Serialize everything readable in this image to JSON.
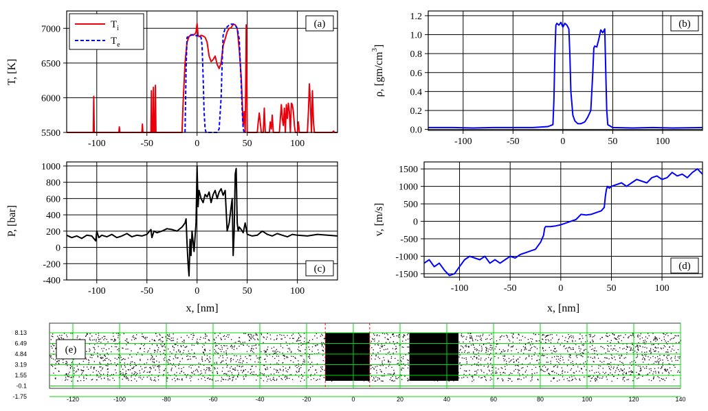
{
  "chart_data": [
    {
      "id": "a",
      "type": "line",
      "panel_label": "(a)",
      "xlabel": "",
      "ylabel": "T, [K]",
      "xlim": [
        -130,
        140
      ],
      "ylim": [
        5500,
        7250
      ],
      "xticks": [
        -100,
        -50,
        0,
        50,
        100
      ],
      "yticks": [
        5500,
        6000,
        6500,
        7000
      ],
      "grid": true,
      "legend": "top-left",
      "series": [
        {
          "name": "T",
          "subscript": "i",
          "color": "#e8000b",
          "dash": "solid",
          "x": [
            -130,
            -103.5,
            -103,
            -102.5,
            -78,
            -77.5,
            -77,
            -55,
            -54.5,
            -54,
            -46,
            -45.5,
            -45,
            -44,
            -43.5,
            -43,
            -42,
            -41.5,
            -41,
            -15,
            -14,
            -12,
            -10,
            -8,
            -6,
            -4,
            -2,
            -1,
            0,
            1,
            2,
            4,
            6,
            8,
            10,
            12,
            14,
            16,
            18,
            20,
            22,
            24,
            26,
            28,
            30,
            32,
            34,
            36,
            38,
            40,
            42,
            44,
            45,
            46,
            46.5,
            47,
            48,
            48.5,
            49,
            50,
            52,
            60,
            61,
            62,
            63,
            64,
            66,
            67,
            68,
            72,
            73,
            74,
            75,
            76,
            82,
            84,
            85,
            86,
            87,
            88,
            89,
            90,
            91,
            92,
            93,
            94,
            95,
            96,
            97,
            98,
            100,
            101,
            102,
            104,
            110,
            111,
            112,
            113,
            114,
            115,
            116,
            117,
            118,
            125,
            135,
            136,
            137,
            140
          ],
          "y": [
            5500,
            5500,
            6020,
            5500,
            5500,
            5580,
            5500,
            5500,
            5620,
            5500,
            5500,
            6100,
            5500,
            5500,
            6150,
            5500,
            5500,
            6180,
            5500,
            5500,
            5900,
            6500,
            6800,
            6880,
            6910,
            6900,
            6920,
            6950,
            7070,
            6900,
            6880,
            6900,
            6890,
            6870,
            6800,
            6600,
            6520,
            6550,
            6600,
            6480,
            6420,
            6500,
            6750,
            6850,
            6950,
            7000,
            7010,
            7060,
            7050,
            7000,
            6700,
            6300,
            5950,
            5600,
            5700,
            5800,
            5500,
            6200,
            7050,
            5500,
            5500,
            5500,
            5650,
            5780,
            5650,
            5500,
            5500,
            5850,
            5500,
            5500,
            5650,
            5550,
            5750,
            5500,
            5500,
            5900,
            5700,
            5600,
            5850,
            5500,
            5900,
            5700,
            5920,
            5800,
            5500,
            5920,
            5900,
            5800,
            5600,
            5500,
            5500,
            5650,
            5500,
            5500,
            5500,
            5800,
            6200,
            5900,
            5500,
            6100,
            5650,
            5500,
            5500,
            5500,
            5500,
            5520,
            5500,
            5500
          ]
        },
        {
          "name": "T",
          "subscript": "e",
          "color": "#0000ff",
          "dash": "dashed",
          "x": [
            -12,
            -11,
            -10,
            -8,
            -6,
            -4,
            -2,
            0,
            2,
            4,
            5,
            6,
            7,
            8,
            9,
            10,
            20,
            22,
            24,
            25,
            26,
            28,
            30,
            32,
            34,
            36,
            38,
            40,
            42,
            44,
            45,
            46,
            47
          ],
          "y": [
            5500,
            6400,
            6870,
            6880,
            6900,
            6910,
            6900,
            6890,
            6900,
            6870,
            6750,
            6300,
            5800,
            5550,
            5500,
            5500,
            5500,
            5550,
            6000,
            6500,
            6900,
            7000,
            7020,
            7050,
            7060,
            7060,
            7050,
            7000,
            6850,
            6200,
            5800,
            5550,
            5500
          ]
        }
      ]
    },
    {
      "id": "b",
      "type": "line",
      "panel_label": "(b)",
      "xlabel": "",
      "ylabel": "ρ, [gm/cm",
      "ylabel_sup": "3",
      "ylabel_tail": "]",
      "xlim": [
        -135,
        140
      ],
      "ylim": [
        -0.01,
        1.25
      ],
      "xticks": [
        -100,
        -50,
        0,
        50,
        100
      ],
      "yticks": [
        0.0,
        0.2,
        0.4,
        0.6,
        0.8,
        1.0,
        1.2
      ],
      "ytick_labels": [
        "0.0",
        "0.2",
        "0.4",
        "0.6",
        "0.8",
        "1.0",
        "1.2"
      ],
      "grid": true,
      "series": [
        {
          "color": "#0000ff",
          "x": [
            -135,
            -110,
            -90,
            -70,
            -50,
            -30,
            -15,
            -10,
            -9,
            -8,
            -7,
            -6,
            -4,
            -2,
            0,
            2,
            4,
            6,
            7,
            8,
            10,
            12,
            15,
            18,
            22,
            25,
            28,
            30,
            31,
            32,
            34,
            36,
            38,
            40,
            42,
            43,
            44,
            45,
            50,
            70,
            90,
            110,
            140
          ],
          "y": [
            0.02,
            0.02,
            0.015,
            0.02,
            0.02,
            0.02,
            0.03,
            0.05,
            0.3,
            0.8,
            1.1,
            1.12,
            1.1,
            1.13,
            1.08,
            1.12,
            1.1,
            1.06,
            0.8,
            0.4,
            0.15,
            0.09,
            0.06,
            0.06,
            0.08,
            0.13,
            0.2,
            0.6,
            0.86,
            0.88,
            0.87,
            0.95,
            1.05,
            1.02,
            1.06,
            0.6,
            0.2,
            0.05,
            0.02,
            0.015,
            0.02,
            0.015,
            0.02
          ]
        }
      ]
    },
    {
      "id": "c",
      "type": "line",
      "panel_label": "(c)",
      "xlabel": "x, [nm]",
      "ylabel": "P, [bar]",
      "xlim": [
        -130,
        140
      ],
      "ylim": [
        -400,
        1050
      ],
      "xticks": [
        -100,
        -50,
        0,
        50,
        100
      ],
      "yticks": [
        -400,
        -200,
        0,
        200,
        400,
        600,
        800,
        1000
      ],
      "grid": true,
      "series": [
        {
          "color": "#000000",
          "x": [
            -130,
            -125,
            -120,
            -115,
            -110,
            -105,
            -101,
            -100,
            -98,
            -95,
            -90,
            -85,
            -80,
            -75,
            -70,
            -65,
            -60,
            -55,
            -50,
            -46,
            -45,
            -43,
            -40,
            -35,
            -30,
            -25,
            -20,
            -15,
            -12,
            -11,
            -10,
            -9,
            -8,
            -7,
            -6,
            -5,
            -3,
            -1,
            0,
            1,
            2,
            3,
            4,
            6,
            8,
            10,
            12,
            14,
            16,
            18,
            20,
            22,
            24,
            26,
            28,
            30,
            32,
            34,
            35,
            36,
            37,
            38,
            39,
            40,
            41,
            42,
            44,
            46,
            48,
            50,
            55,
            60,
            65,
            70,
            75,
            80,
            85,
            90,
            95,
            100,
            110,
            120,
            130,
            140
          ],
          "y": [
            150,
            120,
            140,
            110,
            150,
            140,
            80,
            200,
            120,
            150,
            130,
            160,
            120,
            140,
            170,
            130,
            150,
            140,
            160,
            220,
            120,
            200,
            180,
            200,
            230,
            220,
            200,
            250,
            300,
            350,
            50,
            -200,
            -350,
            100,
            -100,
            200,
            -50,
            300,
            1000,
            500,
            700,
            650,
            600,
            550,
            650,
            620,
            680,
            550,
            650,
            700,
            600,
            680,
            720,
            640,
            700,
            200,
            300,
            500,
            600,
            -100,
            200,
            900,
            970,
            300,
            200,
            250,
            220,
            180,
            300,
            160,
            140,
            150,
            200,
            160,
            140,
            170,
            150,
            130,
            160,
            150,
            140,
            160,
            150,
            140
          ]
        }
      ]
    },
    {
      "id": "d",
      "type": "line",
      "panel_label": "(d)",
      "xlabel": "x, [nm]",
      "ylabel": "v, [m/s]",
      "xlim": [
        -135,
        140
      ],
      "ylim": [
        -1600,
        1700
      ],
      "xticks": [
        -100,
        -50,
        0,
        50,
        100
      ],
      "yticks": [
        -1500,
        -1000,
        -500,
        0,
        500,
        1000,
        1500
      ],
      "grid": true,
      "series": [
        {
          "color": "#0000ff",
          "x": [
            -135,
            -130,
            -125,
            -120,
            -115,
            -110,
            -105,
            -100,
            -95,
            -90,
            -85,
            -80,
            -75,
            -70,
            -65,
            -60,
            -55,
            -50,
            -45,
            -40,
            -35,
            -30,
            -25,
            -20,
            -17,
            -16,
            -15,
            -12,
            -10,
            -5,
            0,
            5,
            10,
            15,
            20,
            25,
            30,
            35,
            40,
            43,
            44,
            45,
            46,
            48,
            50,
            55,
            60,
            65,
            70,
            75,
            80,
            85,
            90,
            95,
            100,
            105,
            110,
            115,
            120,
            125,
            130,
            135,
            140
          ],
          "y": [
            -1200,
            -1100,
            -1300,
            -1200,
            -1400,
            -1550,
            -1500,
            -1300,
            -1100,
            -1000,
            -1050,
            -1100,
            -1000,
            -1200,
            -1100,
            -1200,
            -1100,
            -1000,
            -1050,
            -950,
            -900,
            -850,
            -800,
            -600,
            -400,
            -200,
            -150,
            -150,
            -150,
            -130,
            -100,
            -50,
            0,
            50,
            200,
            180,
            200,
            250,
            300,
            400,
            700,
            900,
            1000,
            950,
            1000,
            1050,
            1100,
            1000,
            1100,
            1200,
            1150,
            1100,
            1250,
            1300,
            1200,
            1250,
            1400,
            1300,
            1350,
            1250,
            1400,
            1500,
            1350
          ]
        }
      ]
    },
    {
      "id": "e",
      "type": "scatter",
      "panel_label": "(e)",
      "xlim": [
        -130,
        140
      ],
      "ylim": [
        -1.75,
        8.13
      ],
      "xticks": [
        -120,
        -100,
        -80,
        -60,
        -40,
        -20,
        0,
        20,
        40,
        60,
        80,
        100,
        120,
        140
      ],
      "yticks": [
        8.13,
        6.49,
        4.84,
        3.19,
        1.55,
        -0.1,
        -1.75
      ],
      "ytick_labels": [
        "8.13",
        "6.49",
        "4.84",
        "3.19",
        "1.55",
        "-0.1",
        "-1.75"
      ],
      "grid_color": "#00dd00",
      "markers_red_dashed_x": [
        -12,
        7
      ],
      "dense_regions": [
        [
          -12,
          7
        ],
        [
          24,
          45
        ]
      ],
      "particle_color": "#000000"
    }
  ]
}
